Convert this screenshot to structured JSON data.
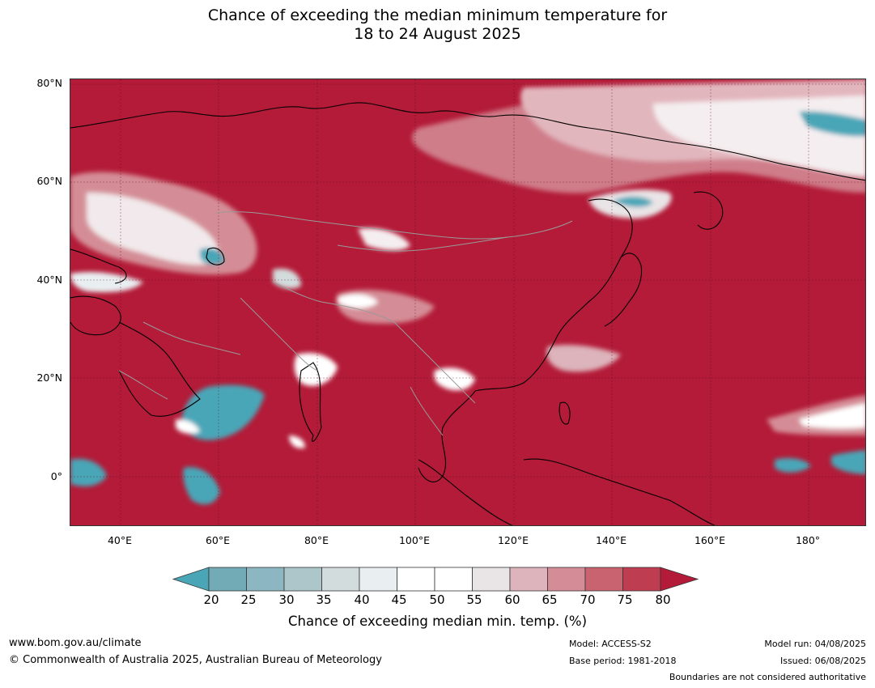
{
  "title": {
    "line1": "Chance of exceeding the median minimum temperature for",
    "line2": "18 to 24 August 2025"
  },
  "axes": {
    "lat_labels": [
      "80°N",
      "60°N",
      "40°N",
      "20°N",
      "0°"
    ],
    "lon_labels": [
      "40°E",
      "60°E",
      "80°E",
      "100°E",
      "120°E",
      "140°E",
      "160°E",
      "180°"
    ],
    "lon_range": [
      30,
      191
    ],
    "lat_range": [
      -10,
      81
    ]
  },
  "legend": {
    "title": "Chance of exceeding median min. temp. (%)",
    "ticks": [
      "20",
      "25",
      "30",
      "35",
      "40",
      "45",
      "50",
      "55",
      "60",
      "65",
      "70",
      "75",
      "80"
    ],
    "colors": [
      "#4aa6b7",
      "#72aab6",
      "#8cb7c2",
      "#acc6ca",
      "#d3dcdc",
      "#e9eff1",
      "#ffffff",
      "#ffffff",
      "#e9e4e6",
      "#ddb4bb",
      "#d48d96",
      "#c8636f",
      "#bf3d51",
      "#b31b38"
    ]
  },
  "footer": {
    "website": "www.bom.gov.au/climate",
    "copyright": "© Commonwealth of Australia 2025, Australian Bureau of Meteorology",
    "model": "Model: ACCESS-S2",
    "base_period": "Base period: 1981-2018",
    "model_run": "Model run: 04/08/2025",
    "issued": "Issued: 06/08/2025",
    "disclaimer": "Boundaries are not considered authoritative"
  }
}
